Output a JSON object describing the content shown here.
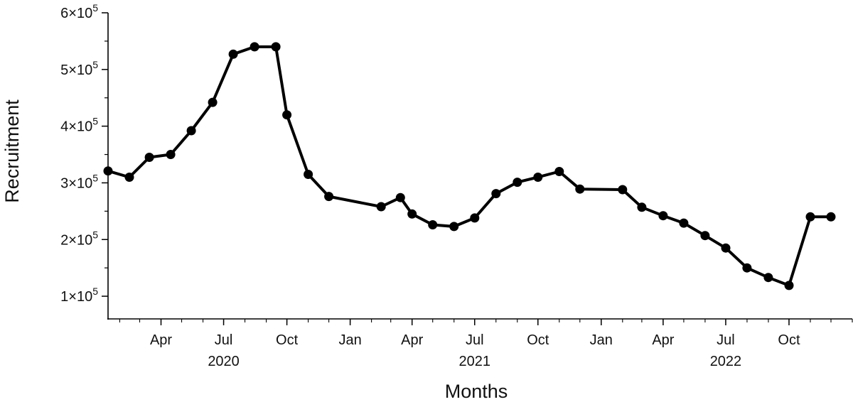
{
  "chart_data": {
    "type": "line",
    "title": "",
    "xlabel": "Months",
    "ylabel": "Recruitment",
    "x_range": [
      "2020-01-15",
      "2023-01-01"
    ],
    "ylim": [
      60000,
      600000
    ],
    "grid": false,
    "legend": "none",
    "line_color": "#000000",
    "marker_color": "#000000",
    "y_ticks": [
      {
        "value": 100000,
        "mantissa": "1×10",
        "exp": "5"
      },
      {
        "value": 200000,
        "mantissa": "2×10",
        "exp": "5"
      },
      {
        "value": 300000,
        "mantissa": "3×10",
        "exp": "5"
      },
      {
        "value": 400000,
        "mantissa": "4×10",
        "exp": "5"
      },
      {
        "value": 500000,
        "mantissa": "5×10",
        "exp": "5"
      },
      {
        "value": 600000,
        "mantissa": "6×10",
        "exp": "5"
      }
    ],
    "x_ticks": [
      {
        "date": "2020-04-01",
        "label": "Apr"
      },
      {
        "date": "2020-07-01",
        "label": "Jul"
      },
      {
        "date": "2020-10-01",
        "label": "Oct"
      },
      {
        "date": "2021-01-01",
        "label": "Jan"
      },
      {
        "date": "2021-04-01",
        "label": "Apr"
      },
      {
        "date": "2021-07-01",
        "label": "Jul"
      },
      {
        "date": "2021-10-01",
        "label": "Oct"
      },
      {
        "date": "2022-01-01",
        "label": "Jan"
      },
      {
        "date": "2022-04-01",
        "label": "Apr"
      },
      {
        "date": "2022-07-01",
        "label": "Jul"
      },
      {
        "date": "2022-10-01",
        "label": "Oct"
      }
    ],
    "year_labels": [
      {
        "date": "2020-07-01",
        "label": "2020"
      },
      {
        "date": "2021-07-01",
        "label": "2021"
      },
      {
        "date": "2022-07-01",
        "label": "2022"
      }
    ],
    "series": [
      {
        "x": [
          "2020-01-15",
          "2020-02-15",
          "2020-03-15",
          "2020-04-15",
          "2020-05-15",
          "2020-06-15",
          "2020-07-15",
          "2020-08-15",
          "2020-09-15",
          "2020-10-01",
          "2020-11-01",
          "2020-12-01",
          "2021-02-15",
          "2021-03-15",
          "2021-04-01",
          "2021-05-01",
          "2021-06-01",
          "2021-07-01",
          "2021-08-01",
          "2021-09-01",
          "2021-10-01",
          "2021-11-01",
          "2021-12-01",
          "2022-02-01",
          "2022-03-01",
          "2022-04-01",
          "2022-05-01",
          "2022-06-01",
          "2022-07-01",
          "2022-08-01",
          "2022-09-01",
          "2022-10-01",
          "2022-11-01",
          "2022-12-01"
        ],
        "values": [
          321000,
          310000,
          345000,
          350000,
          392000,
          442000,
          527000,
          540000,
          540000,
          420000,
          315000,
          276000,
          258000,
          274000,
          245000,
          226000,
          223000,
          238000,
          281000,
          301000,
          310000,
          320000,
          289000,
          288000,
          257000,
          242000,
          229000,
          207000,
          185000,
          150000,
          133000,
          119000,
          240000,
          240000
        ]
      }
    ]
  }
}
